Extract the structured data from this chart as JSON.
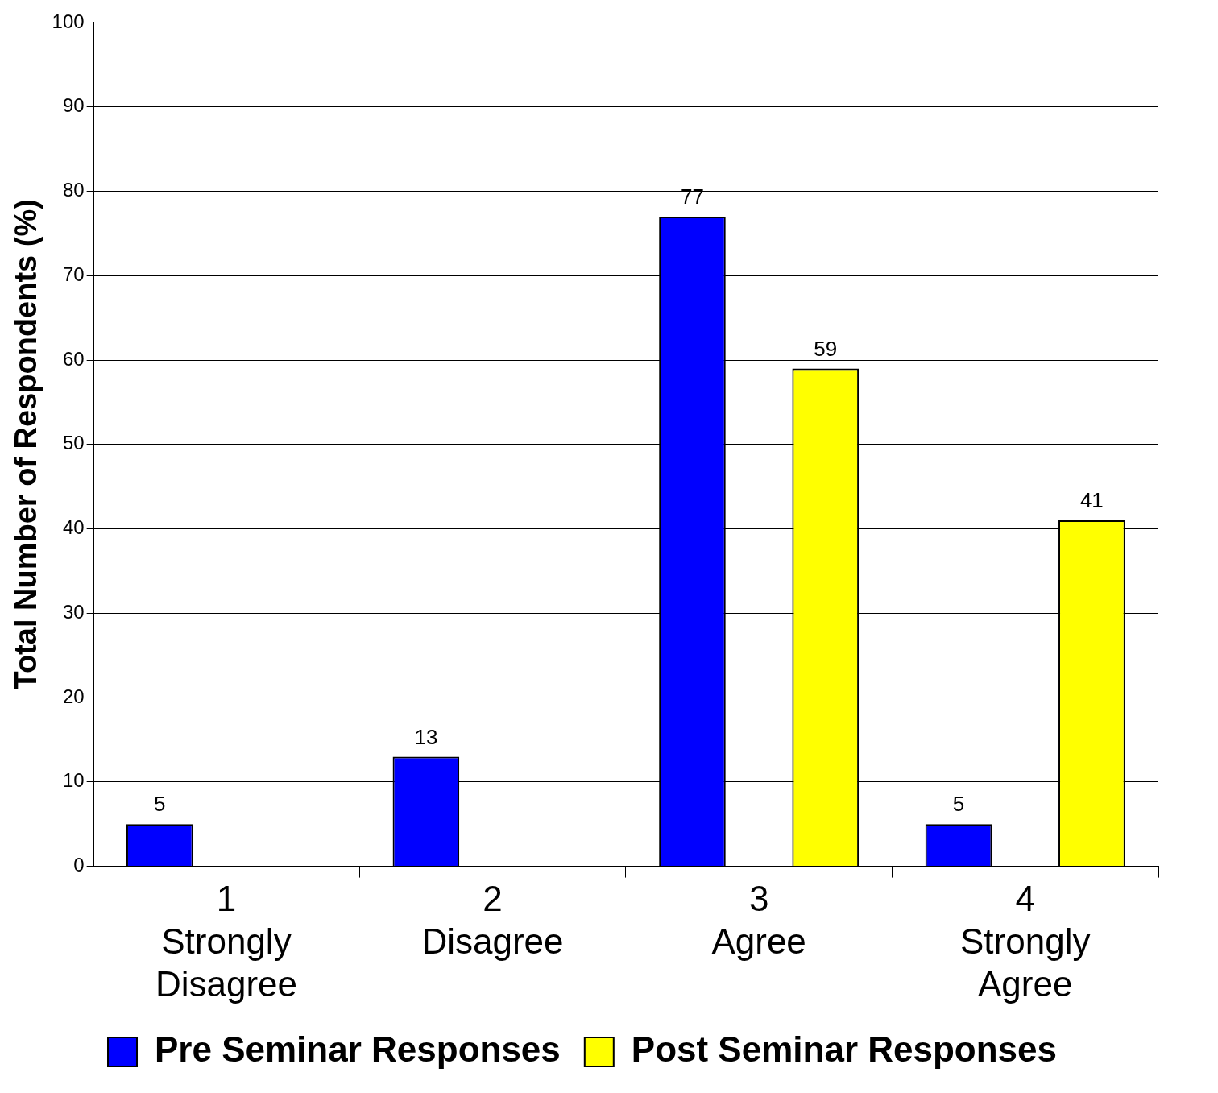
{
  "chart_data": {
    "type": "bar",
    "ylabel": "Total Number of Respondents (%)",
    "categories": [
      "1\nStrongly\nDisagree",
      "2\nDisagree",
      "3\nAgree",
      "4\nStrongly\nAgree"
    ],
    "series": [
      {
        "name": "Pre Seminar Responses",
        "color": "#0000ff",
        "values": [
          5,
          13,
          77,
          5
        ]
      },
      {
        "name": "Post Seminar Responses",
        "color": "#ffff00",
        "values": [
          null,
          null,
          59,
          41
        ]
      }
    ],
    "ylim": [
      0,
      100
    ],
    "yticks": [
      0,
      10,
      20,
      30,
      40,
      50,
      60,
      70,
      80,
      90,
      100
    ],
    "grid": "y",
    "legend": "bottom",
    "data_labels": true
  }
}
